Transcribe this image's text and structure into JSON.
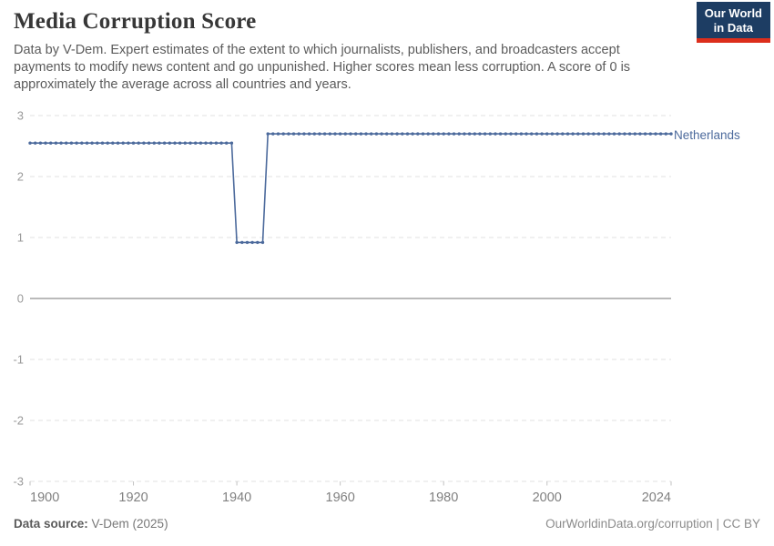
{
  "header": {
    "title": "Media Corruption Score",
    "subtitle": "Data by V-Dem. Expert estimates of the extent to which journalists, publishers, and broadcasters accept payments to modify news content and go unpunished. Higher scores mean less corruption. A score of 0 is approximately the average across all countries and years.",
    "logo": {
      "line1": "Our World",
      "line2": "in Data",
      "bg_color": "#1d3d63",
      "accent_color": "#dc2e1c"
    }
  },
  "chart_data": {
    "type": "line",
    "title": "Media Corruption Score",
    "entity": "Netherlands",
    "xlim": [
      1900,
      2024
    ],
    "ylim": [
      -3,
      3
    ],
    "x_ticks": [
      1900,
      1920,
      1940,
      1960,
      1980,
      2000,
      2024
    ],
    "y_ticks": [
      3,
      2,
      1,
      0,
      -1,
      -2,
      -3
    ],
    "grid": "horizontal dashed gridlines, solid line at zero",
    "legend_position": "end-of-line label, right",
    "markers": "small circle at every yearly data point",
    "segments": [
      {
        "from_year": 1900,
        "to_year": 1939,
        "value": 2.55
      },
      {
        "from_year": 1940,
        "to_year": 1945,
        "value": 0.92
      },
      {
        "from_year": 1946,
        "to_year": 2024,
        "value": 2.7
      }
    ],
    "colors": {
      "series": "#4c6a9c",
      "gridline": "#e0e0e0",
      "zero_line": "#a3a3a3",
      "tick": "#c2c2c2",
      "y_label": "#9a9a9a",
      "x_label": "#808080"
    }
  },
  "footer": {
    "source_label": "Data source:",
    "source_value": " V-Dem (2025)",
    "license_text": "OurWorldinData.org/corruption | CC BY"
  }
}
